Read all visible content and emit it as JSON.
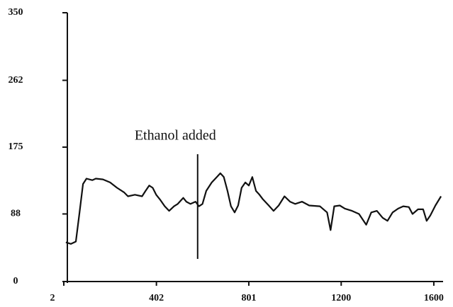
{
  "chart_data": {
    "type": "line",
    "x": [
      11,
      33,
      54,
      70,
      85,
      100,
      125,
      140,
      171,
      202,
      232,
      263,
      279,
      309,
      340,
      355,
      371,
      386,
      401,
      417,
      438,
      457,
      478,
      494,
      518,
      531,
      549,
      571,
      586,
      601,
      617,
      641,
      663,
      678,
      693,
      709,
      724,
      740,
      755,
      770,
      786,
      801,
      816,
      832,
      847,
      862,
      887,
      908,
      930,
      955,
      979,
      1001,
      1031,
      1062,
      1108,
      1139,
      1154,
      1170,
      1194,
      1216,
      1247,
      1277,
      1308,
      1330,
      1354,
      1379,
      1400,
      1422,
      1446,
      1468,
      1492,
      1508,
      1532,
      1554,
      1569,
      1585,
      1607,
      1631
    ],
    "series": [
      {
        "color": "#111111",
        "values": [
          51,
          49,
          52,
          90,
          127,
          134,
          132,
          134,
          133,
          129,
          122,
          116,
          111,
          113,
          111,
          118,
          125,
          122,
          113,
          107,
          98,
          92,
          98,
          101,
          109,
          104,
          101,
          104,
          98,
          101,
          118,
          129,
          136,
          141,
          136,
          118,
          98,
          90,
          99,
          122,
          129,
          125,
          136,
          118,
          113,
          107,
          99,
          92,
          99,
          111,
          104,
          101,
          104,
          99,
          98,
          90,
          67,
          98,
          99,
          95,
          92,
          88,
          74,
          90,
          92,
          83,
          79,
          90,
          95,
          98,
          97,
          88,
          94,
          94,
          79,
          86,
          99,
          111
        ]
      }
    ],
    "annotations": [
      {
        "text": "Ethanol added",
        "x": 580
      }
    ],
    "xlim": [
      2,
      1640
    ],
    "xticks": [
      2,
      402,
      801,
      1200,
      1600
    ],
    "ylim": [
      0,
      350
    ],
    "yticks": [
      0,
      88,
      175,
      262,
      350
    ]
  }
}
